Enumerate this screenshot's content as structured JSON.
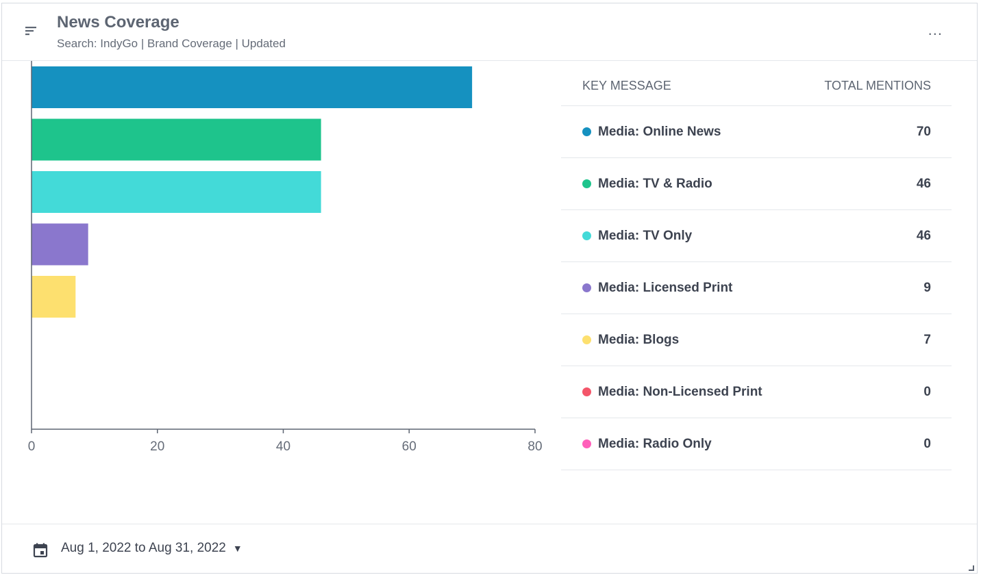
{
  "widget": {
    "title": "News Coverage",
    "subtitle": "Search: IndyGo | Brand Coverage | Updated",
    "more_label": "..."
  },
  "table": {
    "col_key": "KEY MESSAGE",
    "col_total": "TOTAL MENTIONS",
    "rows": [
      {
        "label": "Media: Online News",
        "value": "70",
        "color": "#1591c0"
      },
      {
        "label": "Media: TV & Radio",
        "value": "46",
        "color": "#1ec48c"
      },
      {
        "label": "Media: TV Only",
        "value": "46",
        "color": "#43dad8"
      },
      {
        "label": "Media: Licensed Print",
        "value": "9",
        "color": "#8a77cd"
      },
      {
        "label": "Media: Blogs",
        "value": "7",
        "color": "#fde06f"
      },
      {
        "label": "Media: Non-Licensed Print",
        "value": "0",
        "color": "#f4566a"
      },
      {
        "label": "Media: Radio Only",
        "value": "0",
        "color": "#ff5fba"
      }
    ]
  },
  "chart_data": {
    "type": "bar",
    "orientation": "horizontal",
    "categories": [
      "Media: Online News",
      "Media: TV & Radio",
      "Media: TV Only",
      "Media: Licensed Print",
      "Media: Blogs",
      "Media: Non-Licensed Print",
      "Media: Radio Only"
    ],
    "values": [
      70,
      46,
      46,
      9,
      7,
      0,
      0
    ],
    "colors": [
      "#1591c0",
      "#1ec48c",
      "#43dad8",
      "#8a77cd",
      "#fde06f",
      "#f4566a",
      "#ff5fba"
    ],
    "xlim": [
      0,
      80
    ],
    "xticks": [
      "0",
      "20",
      "40",
      "60",
      "80"
    ],
    "grid": false
  },
  "footer": {
    "date_range": "Aug 1, 2022 to Aug 31, 2022",
    "caret": "▼"
  }
}
